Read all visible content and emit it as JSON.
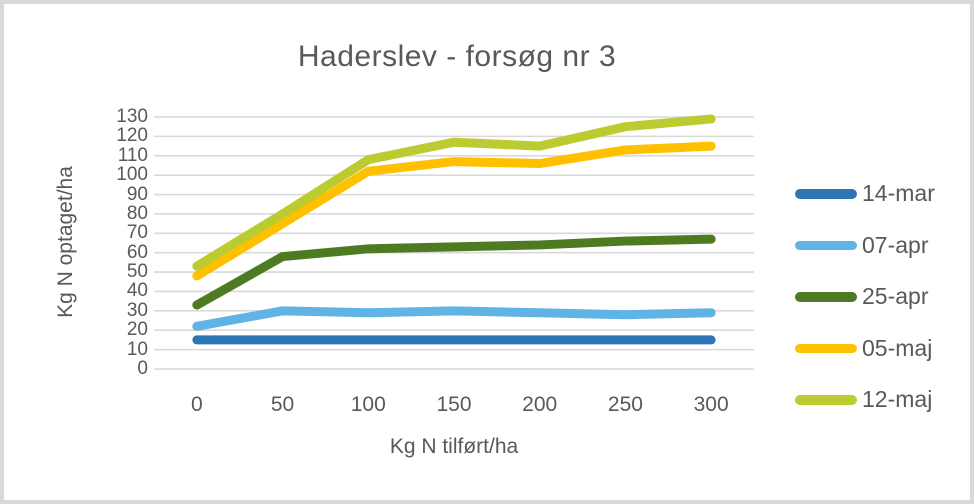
{
  "chart_data": {
    "type": "line",
    "title": "Haderslev - forsøg nr 3",
    "xlabel": "Kg N tilført/ha",
    "ylabel": "Kg N optaget/ha",
    "categories": [
      "0",
      "50",
      "100",
      "150",
      "200",
      "250",
      "300"
    ],
    "yticks": [
      "0",
      "10",
      "20",
      "30",
      "40",
      "50",
      "60",
      "70",
      "80",
      "90",
      "100",
      "110",
      "120",
      "130"
    ],
    "ylim": [
      0,
      130
    ],
    "ytick_step": 10,
    "grid": true,
    "legend_position": "right",
    "series": [
      {
        "name": "14-mar",
        "color": "#2E75B6",
        "values": [
          15,
          15,
          15,
          15,
          15,
          15,
          15
        ]
      },
      {
        "name": "07-apr",
        "color": "#5FB4E5",
        "values": [
          22,
          30,
          29,
          30,
          29,
          28,
          29
        ]
      },
      {
        "name": "25-apr",
        "color": "#4E7A21",
        "values": [
          33,
          58,
          62,
          63,
          64,
          66,
          67
        ]
      },
      {
        "name": "05-maj",
        "color": "#FFC000",
        "values": [
          48,
          75,
          102,
          107,
          106,
          113,
          115
        ]
      },
      {
        "name": "12-maj",
        "color": "#BCCB2F",
        "values": [
          53,
          80,
          108,
          117,
          115,
          125,
          129
        ]
      }
    ],
    "colors": {
      "text": "#595959",
      "grid": "#D9D9D9",
      "frame_border": "#D9D9D9",
      "background": "#FFFFFF"
    }
  }
}
